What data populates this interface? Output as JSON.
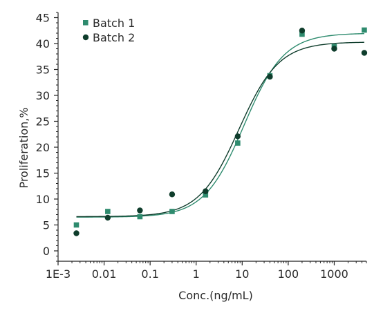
{
  "chart_data": {
    "type": "scatter",
    "title": "",
    "xlabel": "Conc.(ng/mL)",
    "ylabel": "Proliferation,%",
    "x_scale": "log",
    "xlim": [
      0.001,
      5000
    ],
    "ylim": [
      -2,
      46
    ],
    "x_ticks": [
      0.001,
      0.01,
      0.1,
      1,
      10,
      100,
      1000
    ],
    "x_tick_labels": [
      "1E-3",
      "0.01",
      "0.1",
      "1",
      "10",
      "100",
      "1000"
    ],
    "y_ticks": [
      0,
      5,
      10,
      15,
      20,
      25,
      30,
      35,
      40,
      45
    ],
    "y_tick_labels": [
      "0",
      "5",
      "10",
      "15",
      "20",
      "25",
      "30",
      "35",
      "40",
      "45"
    ],
    "grid": false,
    "legend_position": "top-left",
    "series": [
      {
        "name": "Batch 1",
        "marker": "square",
        "color": "#2e8b6e",
        "x": [
          0.0025,
          0.012,
          0.06,
          0.3,
          1.6,
          8,
          40,
          200,
          1000,
          4500
        ],
        "y": [
          5.0,
          7.6,
          6.6,
          7.6,
          10.8,
          20.8,
          33.8,
          41.8,
          39.4,
          42.6
        ],
        "fit": {
          "bottom": 6.5,
          "top": 42.0,
          "ec50": 11.0,
          "hill": 1.0
        }
      },
      {
        "name": "Batch 2",
        "marker": "circle",
        "color": "#0f3d2c",
        "x": [
          0.0025,
          0.012,
          0.06,
          0.3,
          1.6,
          8,
          40,
          200,
          1000,
          4500
        ],
        "y": [
          3.4,
          6.4,
          7.8,
          10.9,
          11.5,
          22.1,
          33.6,
          42.5,
          39.0,
          38.2
        ],
        "fit": {
          "bottom": 6.6,
          "top": 40.3,
          "ec50": 8.5,
          "hill": 1.0
        }
      }
    ]
  }
}
